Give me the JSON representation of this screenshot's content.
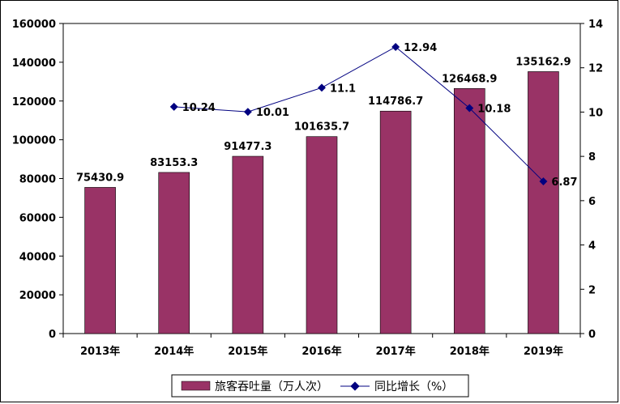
{
  "chart_data": {
    "type": "bar",
    "title": "",
    "xlabel": "",
    "ylabel": "",
    "categories": [
      "2013年",
      "2014年",
      "2015年",
      "2016年",
      "2017年",
      "2018年",
      "2019年"
    ],
    "series": [
      {
        "name": "旅客吞吐量（万人次）",
        "type": "bar",
        "axis": "left",
        "color": "#993366",
        "values": [
          75430.9,
          83153.3,
          91477.3,
          101635.7,
          114786.7,
          126468.9,
          135162.9
        ],
        "labels": [
          "75430.9",
          "83153.3",
          "91477.3",
          "101635.7",
          "114786.7",
          "126468.9",
          "135162.9"
        ]
      },
      {
        "name": "同比增长（%）",
        "type": "line",
        "axis": "right",
        "color": "#000080",
        "values": [
          null,
          10.24,
          10.01,
          11.1,
          12.94,
          10.18,
          6.87
        ],
        "labels": [
          "",
          "10.24",
          "10.01",
          "11.1",
          "12.94",
          "10.18",
          "6.87"
        ]
      }
    ],
    "y_left": {
      "range": [
        0,
        160000
      ],
      "ticks": [
        "0",
        "20000",
        "40000",
        "60000",
        "80000",
        "100000",
        "120000",
        "140000",
        "160000"
      ]
    },
    "y_right": {
      "range": [
        0,
        14
      ],
      "ticks": [
        "0",
        "2",
        "4",
        "6",
        "8",
        "10",
        "12",
        "14"
      ]
    },
    "grid": false,
    "legend": "bottom"
  }
}
